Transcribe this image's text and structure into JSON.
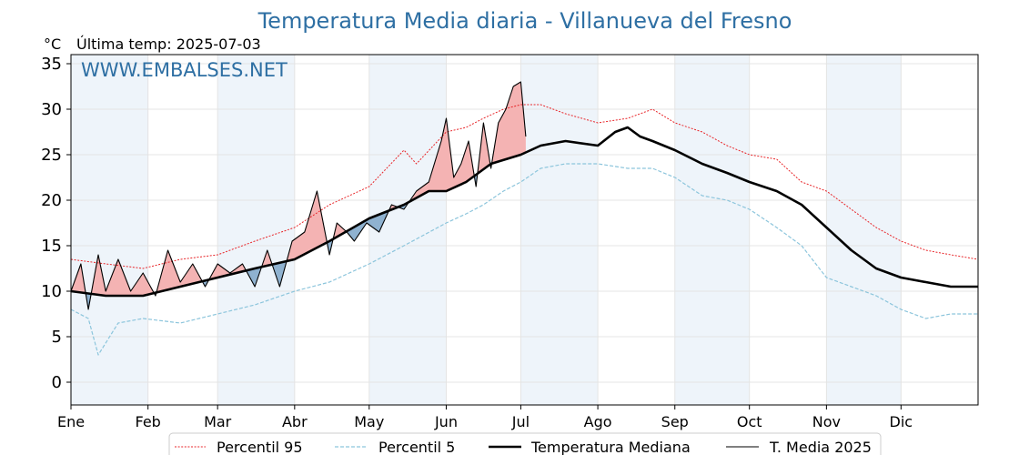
{
  "chart_data": {
    "type": "line",
    "title": "Temperatura Media diaria - Villanueva del Fresno",
    "unit": "°C",
    "last_temp_label": "Última temp: 2025-07-03",
    "watermark": "WWW.EMBALSES.NET",
    "ylim": [
      -2.5,
      36
    ],
    "y_ticks": [
      0,
      5,
      10,
      15,
      20,
      25,
      30,
      35
    ],
    "x_ticks": [
      "Ene",
      "Feb",
      "Mar",
      "Abr",
      "May",
      "Jun",
      "Jul",
      "Ago",
      "Sep",
      "Oct",
      "Nov",
      "Dic"
    ],
    "x_tick_days": [
      1,
      32,
      60,
      91,
      121,
      152,
      182,
      213,
      244,
      274,
      305,
      335
    ],
    "x_range_days": [
      1,
      366
    ],
    "grid": true,
    "legend_position": "bottom",
    "colors": {
      "p95": "#e8262a",
      "p5": "#8cc5dc",
      "median": "#000000",
      "current": "#000000",
      "above_fill": "#f4b3b3",
      "below_fill": "#8fb2d0",
      "month_band": "#eef4fa",
      "title": "#2e6fa3"
    },
    "series": [
      {
        "name": "Percentil 95",
        "style": "dotted-red",
        "x": [
          1,
          15,
          30,
          45,
          60,
          75,
          91,
          105,
          121,
          128,
          135,
          140,
          152,
          160,
          167,
          175,
          182,
          190,
          200,
          213,
          225,
          235,
          244,
          255,
          265,
          274,
          285,
          295,
          305,
          315,
          325,
          335,
          345,
          355,
          366
        ],
        "values": [
          13.5,
          13.0,
          12.5,
          13.5,
          14.0,
          15.5,
          17.0,
          19.5,
          21.5,
          23.5,
          25.5,
          24.0,
          27.5,
          28.0,
          29.0,
          30.0,
          30.5,
          30.5,
          29.5,
          28.5,
          29.0,
          30.0,
          28.5,
          27.5,
          26.0,
          25.0,
          24.5,
          22.0,
          21.0,
          19.0,
          17.0,
          15.5,
          14.5,
          14.0,
          13.5
        ]
      },
      {
        "name": "Percentil 5",
        "style": "dashed-lightblue",
        "x": [
          1,
          8,
          12,
          20,
          30,
          45,
          60,
          75,
          91,
          105,
          121,
          135,
          152,
          160,
          167,
          175,
          182,
          190,
          200,
          213,
          225,
          235,
          244,
          255,
          265,
          274,
          285,
          295,
          305,
          315,
          325,
          335,
          345,
          355,
          366
        ],
        "values": [
          8.0,
          7.0,
          3.0,
          6.5,
          7.0,
          6.5,
          7.5,
          8.5,
          10.0,
          11.0,
          13.0,
          15.0,
          17.5,
          18.5,
          19.5,
          21.0,
          22.0,
          23.5,
          24.0,
          24.0,
          23.5,
          23.5,
          22.5,
          20.5,
          20.0,
          19.0,
          17.0,
          15.0,
          11.5,
          10.5,
          9.5,
          8.0,
          7.0,
          7.5,
          7.5
        ]
      },
      {
        "name": "Temperatura Mediana",
        "style": "thick-black",
        "x": [
          1,
          15,
          30,
          45,
          60,
          75,
          91,
          105,
          121,
          135,
          145,
          152,
          160,
          170,
          182,
          190,
          200,
          213,
          220,
          225,
          230,
          235,
          244,
          255,
          265,
          274,
          285,
          295,
          305,
          315,
          325,
          335,
          345,
          355,
          366
        ],
        "values": [
          10.0,
          9.5,
          9.5,
          10.5,
          11.5,
          12.5,
          13.5,
          15.5,
          18.0,
          19.5,
          21.0,
          21.0,
          22.0,
          24.0,
          25.0,
          26.0,
          26.5,
          26.0,
          27.5,
          28.0,
          27.0,
          26.5,
          25.5,
          24.0,
          23.0,
          22.0,
          21.0,
          19.5,
          17.0,
          14.5,
          12.5,
          11.5,
          11.0,
          10.5,
          10.5
        ]
      },
      {
        "name": "T. Media 2025",
        "style": "thin-black",
        "x": [
          1,
          5,
          8,
          12,
          15,
          20,
          25,
          30,
          35,
          40,
          45,
          50,
          55,
          60,
          65,
          70,
          75,
          80,
          85,
          90,
          95,
          100,
          105,
          108,
          112,
          115,
          120,
          125,
          130,
          135,
          140,
          145,
          150,
          152,
          155,
          158,
          161,
          164,
          167,
          170,
          173,
          176,
          179,
          182,
          184
        ],
        "values": [
          10.0,
          13.0,
          8.0,
          14.0,
          10.0,
          13.5,
          10.0,
          12.0,
          9.5,
          14.5,
          11.0,
          13.0,
          10.5,
          13.0,
          12.0,
          13.0,
          10.5,
          14.5,
          10.5,
          15.5,
          16.5,
          21.0,
          14.0,
          17.5,
          16.5,
          15.5,
          17.5,
          16.5,
          19.5,
          19.0,
          21.0,
          22.0,
          26.5,
          29.0,
          22.5,
          24.0,
          26.5,
          21.5,
          28.5,
          23.5,
          28.5,
          30.0,
          32.5,
          33.0,
          27.0
        ]
      }
    ]
  },
  "legend": [
    {
      "label": "Percentil 95",
      "style": "dotted-red"
    },
    {
      "label": "Percentil 5",
      "style": "dashed-lightblue"
    },
    {
      "label": "Temperatura Mediana",
      "style": "thick-black"
    },
    {
      "label": "T. Media 2025",
      "style": "thin-black"
    }
  ]
}
